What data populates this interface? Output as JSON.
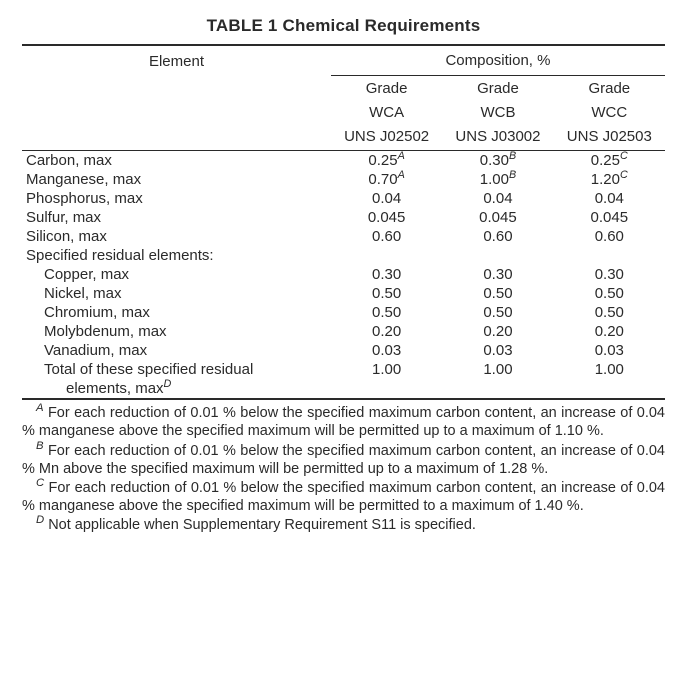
{
  "title": "TABLE 1   Chemical Requirements",
  "header": {
    "element": "Element",
    "composition": "Composition, %"
  },
  "grades": {
    "g1": {
      "grade": "Grade",
      "code": "WCA",
      "uns": "UNS J02502"
    },
    "g2": {
      "grade": "Grade",
      "code": "WCB",
      "uns": "UNS J03002"
    },
    "g3": {
      "grade": "Grade",
      "code": "WCC",
      "uns": "UNS J02503"
    }
  },
  "rows": {
    "carbon": {
      "label": "Carbon, max",
      "v1": "0.25",
      "s1": "A",
      "v2": "0.30",
      "s2": "B",
      "v3": "0.25",
      "s3": "C"
    },
    "manganese": {
      "label": "Manganese, max",
      "v1": "0.70",
      "s1": "A",
      "v2": "1.00",
      "s2": "B",
      "v3": "1.20",
      "s3": "C"
    },
    "phosphorus": {
      "label": "Phosphorus, max",
      "v1": "0.04",
      "v2": "0.04",
      "v3": "0.04"
    },
    "sulfur": {
      "label": "Sulfur, max",
      "v1": "0.045",
      "v2": "0.045",
      "v3": "0.045"
    },
    "silicon": {
      "label": "Silicon, max",
      "v1": "0.60",
      "v2": "0.60",
      "v3": "0.60"
    },
    "residual_hdr": {
      "label": "Specified residual elements:"
    },
    "copper": {
      "label": "Copper, max",
      "v1": "0.30",
      "v2": "0.30",
      "v3": "0.30"
    },
    "nickel": {
      "label": "Nickel, max",
      "v1": "0.50",
      "v2": "0.50",
      "v3": "0.50"
    },
    "chromium": {
      "label": "Chromium, max",
      "v1": "0.50",
      "v2": "0.50",
      "v3": "0.50"
    },
    "molybdenum": {
      "label": "Molybdenum, max",
      "v1": "0.20",
      "v2": "0.20",
      "v3": "0.20"
    },
    "vanadium": {
      "label": "Vanadium, max",
      "v1": "0.03",
      "v2": "0.03",
      "v3": "0.03"
    },
    "total": {
      "label1": "Total of these specified residual",
      "label2": "elements, max",
      "sup": "D",
      "v1": "1.00",
      "v2": "1.00",
      "v3": "1.00"
    }
  },
  "footnotes": {
    "A": "For each reduction of 0.01 % below the specified maximum carbon content, an increase of 0.04 % manganese above the specified maximum will be permitted up to a maximum of 1.10 %.",
    "B": "For each reduction of 0.01 % below the specified maximum carbon content, an increase of 0.04 % Mn above the specified maximum will be permitted up to a maximum of 1.28 %.",
    "C": "For each reduction of 0.01 % below the specified maximum carbon content, an increase of 0.04 % manganese above the specified maximum will be permitted to a maximum of 1.40 %.",
    "D": "Not applicable when Supplementary Requirement S11 is specified."
  },
  "marks": {
    "A": "A",
    "B": "B",
    "C": "C",
    "D": "D"
  }
}
